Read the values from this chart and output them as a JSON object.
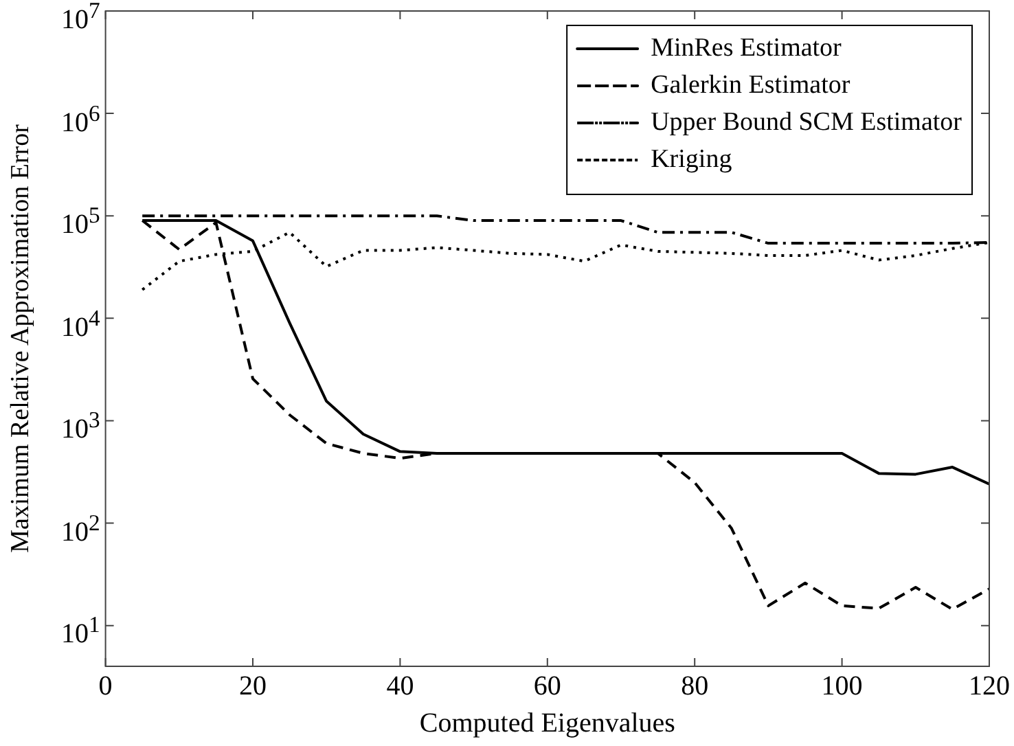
{
  "chart_data": {
    "type": "line",
    "xlabel": "Computed Eigenvalues",
    "ylabel": "Maximum Relative Approximation Error",
    "x": [
      5,
      10,
      15,
      20,
      25,
      30,
      35,
      40,
      45,
      50,
      55,
      60,
      65,
      70,
      75,
      80,
      85,
      90,
      95,
      100,
      105,
      110,
      115,
      120
    ],
    "series": [
      {
        "name": "MinRes Estimator",
        "color": "#000000",
        "line_style": "solid",
        "values": [
          90000,
          90000,
          90000,
          57000,
          9000,
          1550,
          740,
          500,
          480,
          480,
          480,
          480,
          480,
          480,
          480,
          480,
          480,
          480,
          480,
          480,
          306,
          300,
          352,
          241
        ]
      },
      {
        "name": "Galerkin Estimator",
        "color": "#000000",
        "line_style": "dashed",
        "values": [
          90000,
          47000,
          86000,
          2570,
          1140,
          600,
          480,
          430,
          480,
          480,
          480,
          480,
          480,
          480,
          480,
          249,
          89,
          15.6,
          26,
          15.6,
          14.7,
          23.6,
          14.4,
          22.8
        ]
      },
      {
        "name": "Upper Bound SCM Estimator",
        "color": "#000000",
        "line_style": "dashdot",
        "values": [
          100000,
          100000,
          100000,
          100000,
          100000,
          100000,
          100000,
          100000,
          100000,
          90000,
          90000,
          90000,
          90000,
          90000,
          69000,
          69000,
          69000,
          54000,
          54000,
          54000,
          54000,
          54000,
          54000,
          55000
        ]
      },
      {
        "name": "Kriging",
        "color": "#000000",
        "line_style": "dotted",
        "values": [
          19000,
          36000,
          42000,
          45000,
          69000,
          32000,
          46000,
          46000,
          49000,
          46000,
          43000,
          42000,
          36000,
          52000,
          45000,
          44000,
          43000,
          41000,
          41000,
          46000,
          37000,
          41000,
          48000,
          55000
        ]
      }
    ],
    "xlim": [
      0,
      120
    ],
    "xticks": [
      0,
      20,
      40,
      60,
      80,
      100,
      120
    ],
    "ylim": [
      4,
      10000000
    ],
    "yticks": [
      {
        "value": 10,
        "label": "10$^{1}$"
      },
      {
        "value": 100,
        "label": "10$^{2}$"
      },
      {
        "value": 1000,
        "label": "10$^{3}$"
      },
      {
        "value": 10000,
        "label": "10$^{4}$"
      },
      {
        "value": 100000,
        "label": "10$^{5}$"
      },
      {
        "value": 1000000,
        "label": "10$^{6}$"
      },
      {
        "value": 10000000,
        "label": "10$^{7}$"
      }
    ],
    "log": "y",
    "grid": false,
    "legend": "top right",
    "marker": "none"
  }
}
